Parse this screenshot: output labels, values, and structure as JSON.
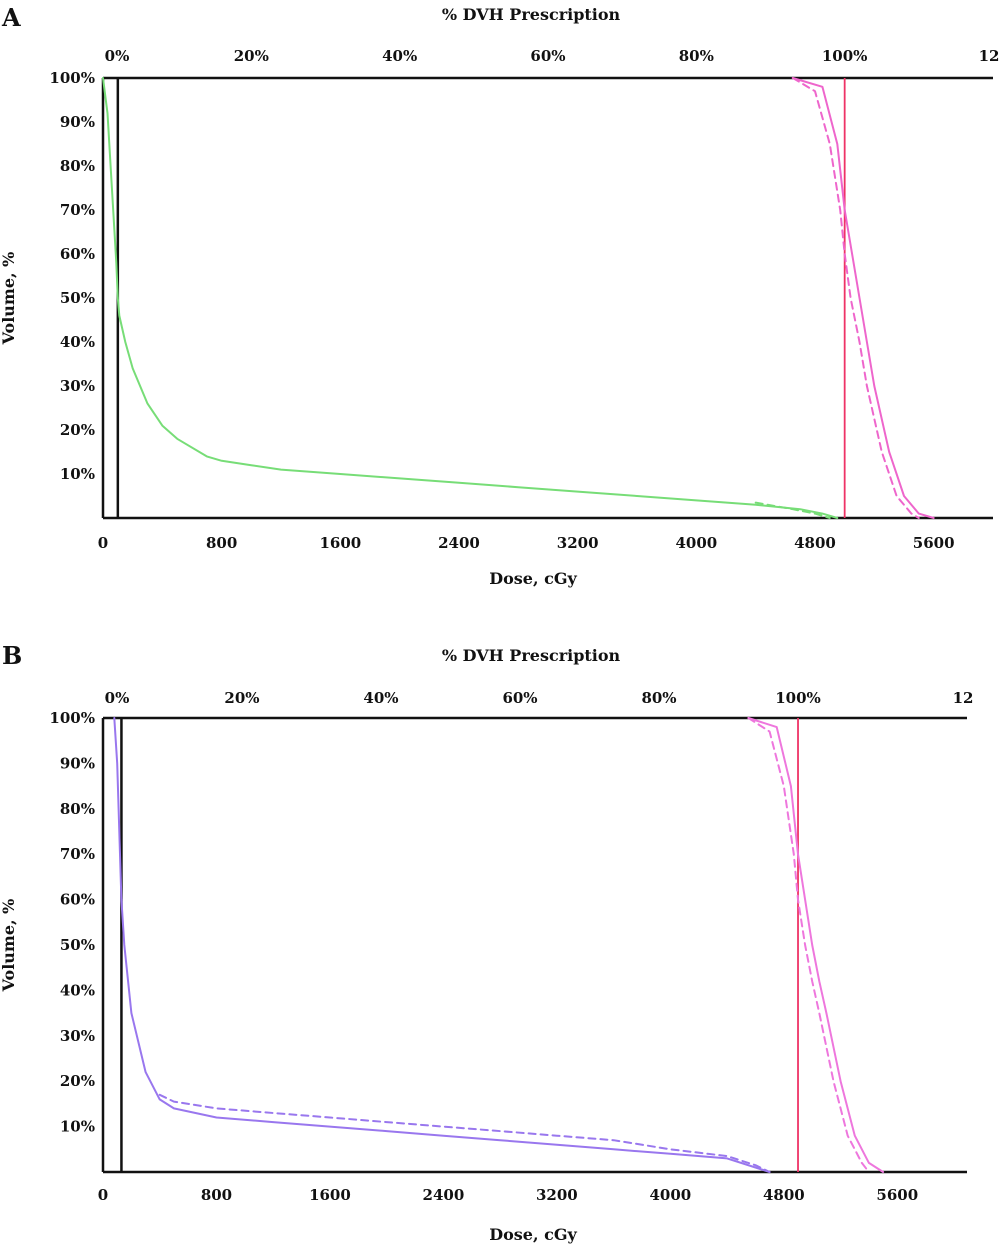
{
  "chart_data": [
    {
      "panel": "A",
      "type": "line",
      "top_axis_title": "% DVH Prescription",
      "top_ticks": [
        "0%",
        "20%",
        "40%",
        "60%",
        "80%",
        "100%",
        "12"
      ],
      "xlabel": "Dose, cGy",
      "ylabel": "Volume, %",
      "x_ticks": [
        "0",
        "800",
        "1600",
        "2400",
        "3200",
        "4000",
        "4800",
        "5600"
      ],
      "y_ticks": [
        "10%",
        "20%",
        "30%",
        "40%",
        "50%",
        "60%",
        "70%",
        "80%",
        "90%",
        "100%"
      ],
      "xlim": [
        0,
        6000
      ],
      "ylim": [
        0,
        100
      ],
      "prescription_line_x": 5000,
      "low_dose_line_x": 100,
      "series": [
        {
          "color": "#77dd77",
          "dash": false,
          "x": [
            0,
            30,
            60,
            90,
            100,
            110,
            150,
            200,
            300,
            400,
            500,
            700,
            800,
            1000,
            1200,
            1600,
            2000,
            2400,
            2800,
            3200,
            3600,
            4000,
            4400,
            4700,
            4850,
            4950
          ],
          "y": [
            100,
            92,
            75,
            58,
            50,
            46,
            40,
            34,
            26,
            21,
            18,
            14,
            13,
            12,
            11,
            10,
            9,
            8,
            7,
            6,
            5,
            4,
            3,
            2,
            1,
            0
          ]
        },
        {
          "color": "#77dd77",
          "dash": true,
          "x": [
            4400,
            4650,
            4800,
            4900
          ],
          "y": [
            3.5,
            2,
            1,
            0
          ]
        },
        {
          "color": "#ee66cc",
          "dash": false,
          "x": [
            4650,
            4850,
            4950,
            5000,
            5050,
            5100,
            5150,
            5200,
            5300,
            5400,
            5500,
            5600
          ],
          "y": [
            100,
            98,
            85,
            70,
            60,
            50,
            40,
            30,
            15,
            5,
            1,
            0
          ]
        },
        {
          "color": "#ee66cc",
          "dash": true,
          "x": [
            4650,
            4800,
            4900,
            4970,
            5000,
            5040,
            5100,
            5150,
            5250,
            5350,
            5450,
            5500
          ],
          "y": [
            100,
            97,
            85,
            70,
            60,
            50,
            40,
            30,
            15,
            5,
            1,
            0
          ]
        }
      ]
    },
    {
      "panel": "B",
      "type": "line",
      "top_axis_title": "% DVH Prescription",
      "top_ticks": [
        "0%",
        "20%",
        "40%",
        "60%",
        "80%",
        "100%",
        "12"
      ],
      "xlabel": "Dose, cGy",
      "ylabel": "Volume, %",
      "x_ticks": [
        "0",
        "800",
        "1600",
        "2400",
        "3200",
        "4000",
        "4800",
        "5600"
      ],
      "y_ticks": [
        "10%",
        "20%",
        "30%",
        "40%",
        "50%",
        "60%",
        "70%",
        "80%",
        "90%",
        "100%"
      ],
      "xlim": [
        0,
        6000
      ],
      "ylim": [
        0,
        100
      ],
      "prescription_line_x": 4900,
      "low_dose_line_x": 130,
      "series": [
        {
          "color": "#9977ee",
          "dash": false,
          "x": [
            80,
            100,
            130,
            150,
            200,
            300,
            400,
            500,
            800,
            1200,
            1600,
            2000,
            2400,
            2800,
            3200,
            3600,
            4000,
            4400,
            4600,
            4700
          ],
          "y": [
            100,
            90,
            60,
            50,
            35,
            22,
            16,
            14,
            12,
            11,
            10,
            9,
            8,
            7,
            6,
            5,
            4,
            3,
            1,
            0
          ]
        },
        {
          "color": "#9977ee",
          "dash": true,
          "x": [
            400,
            500,
            800,
            1200,
            1600,
            2000,
            2400,
            2800,
            3200,
            3600,
            4000,
            4400,
            4600,
            4700
          ],
          "y": [
            17,
            15.5,
            14,
            13,
            12,
            11,
            10,
            9,
            8,
            7,
            5,
            3.5,
            1.5,
            0
          ]
        },
        {
          "color": "#ee77dd",
          "dash": false,
          "x": [
            4550,
            4750,
            4850,
            4900,
            4950,
            5000,
            5050,
            5100,
            5200,
            5300,
            5400,
            5500
          ],
          "y": [
            100,
            98,
            85,
            70,
            60,
            50,
            42,
            35,
            20,
            8,
            2,
            0
          ]
        },
        {
          "color": "#ee77dd",
          "dash": true,
          "x": [
            4550,
            4700,
            4800,
            4870,
            4900,
            4950,
            5000,
            5050,
            5150,
            5250,
            5350,
            5400
          ],
          "y": [
            100,
            97,
            85,
            70,
            60,
            50,
            42,
            35,
            20,
            8,
            2,
            0
          ]
        }
      ]
    }
  ]
}
